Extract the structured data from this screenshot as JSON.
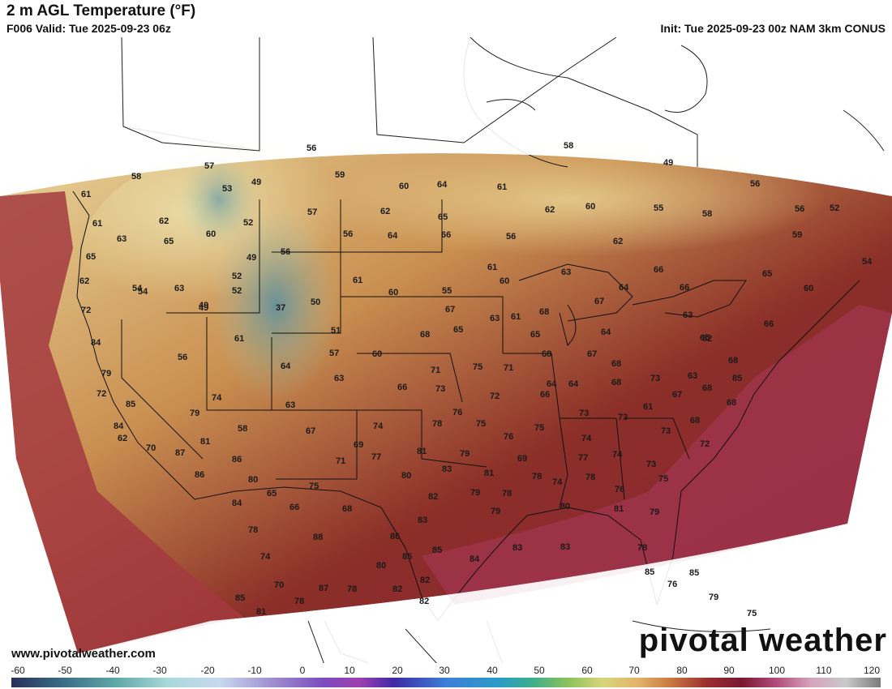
{
  "header": {
    "title": "2 m AGL Temperature (°F)",
    "valid": "F006 Valid: Tue 2025-09-23 06z",
    "init": "Init: Tue 2025-09-23 00z NAM 3km CONUS"
  },
  "footer": {
    "website": "www.pivotalweather.com",
    "brand": "pivotal weather"
  },
  "colorbar": {
    "ticks": [
      "-60",
      "-50",
      "-40",
      "-30",
      "-20",
      "-10",
      "0",
      "10",
      "20",
      "30",
      "40",
      "50",
      "60",
      "70",
      "80",
      "90",
      "100",
      "110",
      "120"
    ]
  },
  "colors": {
    "cool": "#e6d39a",
    "mild": "#c48a4a",
    "warm": "#8a2a26",
    "hot": "#8c1f3e",
    "ocean": "#9a2844",
    "mountain_cold": "#4f8fa8"
  },
  "temperatures": [
    "56",
    "58",
    "57",
    "49",
    "53",
    "59",
    "60",
    "64",
    "61",
    "58",
    "49",
    "56",
    "56",
    "52",
    "61",
    "61",
    "62",
    "52",
    "57",
    "62",
    "65",
    "55",
    "58",
    "59",
    "63",
    "65",
    "60",
    "56",
    "64",
    "66",
    "62",
    "62",
    "60",
    "56",
    "54",
    "65",
    "62",
    "54",
    "63",
    "49",
    "52",
    "56",
    "49",
    "61",
    "60",
    "60",
    "55",
    "63",
    "64",
    "66",
    "66",
    "65",
    "60",
    "72",
    "54",
    "63",
    "52",
    "37",
    "50",
    "51",
    "61",
    "67",
    "61",
    "68",
    "67",
    "62",
    "65",
    "64",
    "63",
    "84",
    "49",
    "57",
    "60",
    "68",
    "65",
    "75",
    "71",
    "68",
    "67",
    "68",
    "64",
    "65",
    "66",
    "79",
    "56",
    "64",
    "63",
    "66",
    "71",
    "73",
    "72",
    "64",
    "68",
    "73",
    "67",
    "63",
    "85",
    "72",
    "61",
    "74",
    "63",
    "68",
    "68",
    "61",
    "73",
    "66",
    "68",
    "85",
    "79",
    "58",
    "67",
    "74",
    "78",
    "76",
    "75",
    "76",
    "73",
    "73",
    "68",
    "84",
    "62",
    "81",
    "69",
    "77",
    "81",
    "79",
    "75",
    "74",
    "74",
    "72",
    "70",
    "87",
    "86",
    "71",
    "80",
    "83",
    "81",
    "77",
    "78",
    "74",
    "73",
    "69",
    "86",
    "80",
    "75",
    "82",
    "79",
    "78",
    "78",
    "76",
    "75",
    "84",
    "65",
    "66",
    "68",
    "83",
    "79",
    "80",
    "81",
    "79",
    "78",
    "88",
    "74",
    "86",
    "85",
    "85",
    "84",
    "83",
    "83",
    "78",
    "87",
    "70",
    "80",
    "82",
    "82",
    "76",
    "85",
    "78",
    "78",
    "85",
    "81",
    "82",
    "75",
    "79",
    "85",
    "81",
    "81"
  ]
}
